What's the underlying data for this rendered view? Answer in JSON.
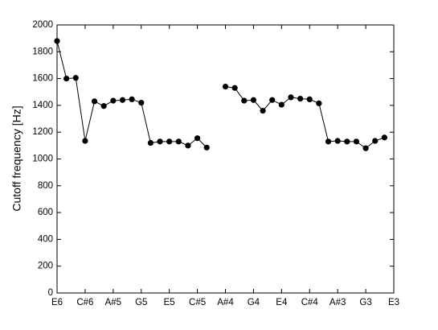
{
  "chart_data": {
    "type": "line",
    "ylabel": "Cutoff frequency [Hz]",
    "categories": [
      "E6",
      null,
      null,
      "C#6",
      null,
      null,
      "A#5",
      null,
      null,
      "G5",
      null,
      null,
      "E5",
      null,
      null,
      "C#5",
      null,
      null,
      "A#4",
      null,
      null,
      "G4",
      null,
      null,
      "E4",
      null,
      null,
      "C#4",
      null,
      null,
      "A#3",
      null,
      null,
      "G3",
      null,
      null,
      "E3"
    ],
    "series": [
      {
        "color": "#000000",
        "values": [
          1880,
          1600,
          1605,
          1135,
          1430,
          1395,
          1435,
          1440,
          1445,
          1420,
          1120,
          1130,
          1130,
          1130,
          1100,
          1155,
          1085,
          null,
          1540,
          1530,
          1435,
          1440,
          1360,
          1440,
          1405,
          1460,
          1450,
          1445,
          1415,
          1130,
          1135,
          1130,
          1130,
          1080,
          1135,
          1160,
          null
        ]
      }
    ],
    "ylim": [
      0,
      2000
    ],
    "yticks": [
      0,
      200,
      400,
      600,
      800,
      1000,
      1200,
      1400,
      1600,
      1800,
      2000
    ],
    "grid": false
  }
}
